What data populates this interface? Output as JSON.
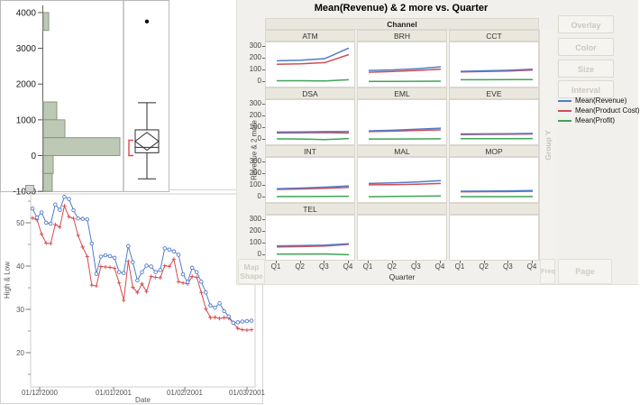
{
  "colors": {
    "revenue": "#4f7ccb",
    "product_cost": "#cf4e57",
    "profit": "#3fa456",
    "high_line": "#4f7ccb",
    "low_line": "#d5494f",
    "hist_fill": "#bec9b5",
    "hist_stroke": "#88987f",
    "bracket": "#e0484e",
    "header_bg": "#eae7df",
    "panel_bg": "#f1f0ec",
    "disabled_text": "#ccc8be"
  },
  "graph_builder": {
    "buttons": [
      "Overlay",
      "Color",
      "Size",
      "Interval"
    ],
    "legend": [
      {
        "label": "Mean(Revenue)",
        "color_key": "revenue"
      },
      {
        "label": "Mean(Product Cost)",
        "color_key": "product_cost"
      },
      {
        "label": "Mean(Profit)",
        "color_key": "profit"
      }
    ],
    "drop_zones": {
      "group_y": "Group Y",
      "map_shape_line1": "Map",
      "map_shape_line2": "Shape",
      "freq": "Freq",
      "page": "Page"
    }
  },
  "chart_data": [
    {
      "id": "distribution",
      "type": "bar",
      "subtype": "histogram-with-boxplot",
      "orientation": "horizontal",
      "ylim": [
        -1000,
        4000
      ],
      "y_ticks": [
        4000,
        3000,
        2000,
        1000,
        0,
        -1000
      ],
      "bin_width": 500,
      "bins": [
        {
          "low": 3500,
          "high": 4000,
          "count": 6
        },
        {
          "low": 1000,
          "high": 1500,
          "count": 15
        },
        {
          "low": 500,
          "high": 1000,
          "count": 24
        },
        {
          "low": 0,
          "high": 500,
          "count": 85
        },
        {
          "low": -500,
          "high": 0,
          "count": 11
        },
        {
          "low": -1000,
          "high": -500,
          "count": 10
        }
      ],
      "boxplot": {
        "outlier": 3750,
        "whisker_high": 1480,
        "q3": 720,
        "median": 230,
        "q1": 80,
        "whisker_low": -650,
        "mean_ci_high": 650,
        "mean_ci_low": 150,
        "shortest_half_low": 0,
        "shortest_half_high": 430
      }
    },
    {
      "id": "high_low",
      "type": "line",
      "xlabel": "Date",
      "ylabel": "High & Low",
      "x_tick_labels": [
        "01/12/2000",
        "01/01/2001",
        "01/02/2001",
        "01/03/2001"
      ],
      "y_ticks": [
        50,
        40,
        30,
        20
      ],
      "ylim": [
        12,
        57
      ],
      "series": [
        {
          "name": "High",
          "marker": "circle",
          "color_key": "high_line",
          "values": [
            53.3,
            51.2,
            52.4,
            50.0,
            49.8,
            54.2,
            53.0,
            56.0,
            55.5,
            52.9,
            51.0,
            50.9,
            50.8,
            45.2,
            38.2,
            42.2,
            42.5,
            42.3,
            41.9,
            38.6,
            38.4,
            44.6,
            40.9,
            36.7,
            38.6,
            40.1,
            39.9,
            38.6,
            39.1,
            44.1,
            43.8,
            43.4,
            42.6,
            38.1,
            36.3,
            39.6,
            38.6,
            36.4,
            33.9,
            30.9,
            30.4,
            31.4,
            29.6,
            28.4,
            26.9,
            27.0,
            27.2,
            27.3,
            27.4
          ]
        },
        {
          "name": "Low",
          "marker": "plus",
          "color_key": "low_line",
          "values": [
            51.1,
            50.7,
            47.4,
            45.3,
            45.2,
            49.6,
            49.0,
            53.9,
            51.4,
            51.0,
            47.1,
            44.4,
            42.2,
            35.6,
            35.4,
            39.9,
            39.8,
            39.7,
            39.5,
            36.1,
            32.1,
            41.1,
            35.1,
            33.9,
            35.9,
            34.1,
            37.6,
            37.4,
            37.3,
            40.1,
            39.9,
            41.6,
            36.4,
            36.1,
            35.9,
            37.6,
            37.4,
            33.9,
            30.1,
            28.1,
            28.2,
            27.9,
            28.1,
            28.0,
            26.9,
            25.6,
            25.3,
            25.2,
            25.3
          ]
        }
      ]
    },
    {
      "id": "trellis",
      "type": "line",
      "title": "Mean(Revenue) & 2 more vs. Quarter",
      "facet": "Channel",
      "ylabel": "Revenue & 2 more",
      "xlabel": "Quarter",
      "categories": [
        "Q1",
        "Q2",
        "Q3",
        "Q4"
      ],
      "x_ticks": [
        "Q1",
        "Q2",
        "Q3",
        "Q4"
      ],
      "y_ticks": [
        300,
        200,
        100,
        0
      ],
      "ylim": [
        -25,
        330
      ],
      "panels": [
        {
          "name": "ATM",
          "revenue": [
            178,
            183,
            196,
            286
          ],
          "product_cost": [
            148,
            152,
            162,
            231
          ],
          "profit": [
            8,
            8,
            6,
            16
          ]
        },
        {
          "name": "BRH",
          "revenue": [
            95,
            100,
            110,
            126
          ],
          "product_cost": [
            80,
            86,
            95,
            106
          ],
          "profit": [
            2,
            2,
            3,
            4
          ]
        },
        {
          "name": "CCT",
          "revenue": [
            88,
            92,
            97,
            106
          ],
          "product_cost": [
            83,
            86,
            90,
            99
          ],
          "profit": [
            16,
            16,
            17,
            18
          ]
        },
        {
          "name": "DSA",
          "revenue": [
            62,
            63,
            66,
            67
          ],
          "product_cost": [
            55,
            56,
            58,
            54
          ],
          "profit": [
            5,
            3,
            -2,
            7
          ]
        },
        {
          "name": "EML",
          "revenue": [
            72,
            78,
            87,
            95
          ],
          "product_cost": [
            66,
            70,
            76,
            81
          ],
          "profit": [
            3,
            3,
            4,
            5
          ]
        },
        {
          "name": "EVE",
          "revenue": [
            46,
            47,
            48,
            51
          ],
          "product_cost": [
            41,
            42,
            43,
            46
          ],
          "profit": [
            6,
            6,
            6,
            7
          ]
        },
        {
          "name": "INT",
          "revenue": [
            71,
            77,
            85,
            95
          ],
          "product_cost": [
            65,
            69,
            75,
            82
          ],
          "profit": [
            5,
            5,
            6,
            7
          ]
        },
        {
          "name": "MAL",
          "revenue": [
            116,
            121,
            129,
            140
          ],
          "product_cost": [
            105,
            106,
            109,
            116
          ],
          "profit": [
            3,
            6,
            8,
            9
          ]
        },
        {
          "name": "MOP",
          "revenue": [
            50,
            51,
            53,
            56
          ],
          "product_cost": [
            45,
            46,
            47,
            50
          ],
          "profit": [
            4,
            4,
            4,
            5
          ]
        },
        {
          "name": "TEL",
          "revenue": [
            76,
            79,
            83,
            94
          ],
          "product_cost": [
            67,
            70,
            75,
            89
          ],
          "profit": [
            6,
            7,
            8,
            1
          ]
        },
        {
          "name": ""
        },
        {
          "name": ""
        }
      ]
    }
  ]
}
